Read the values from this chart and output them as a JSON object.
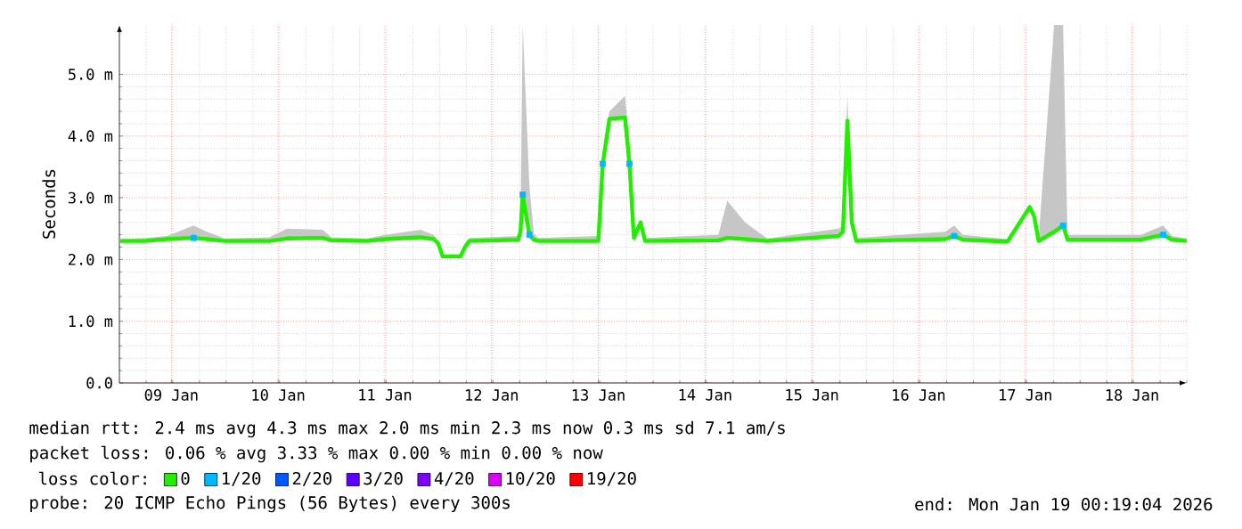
{
  "chart_data": {
    "type": "line",
    "ylabel": "Seconds",
    "legend_title": "loss color:",
    "legend": "bottom",
    "grid": true,
    "xlim": [
      "2026-01-09T00:19",
      "2026-01-19T00:19"
    ],
    "xticks": [
      {
        "value": "2026-01-09T12:00",
        "label": "09 Jan"
      },
      {
        "value": "2026-01-10T12:00",
        "label": "10 Jan"
      },
      {
        "value": "2026-01-11T12:00",
        "label": "11 Jan"
      },
      {
        "value": "2026-01-12T12:00",
        "label": "12 Jan"
      },
      {
        "value": "2026-01-13T12:00",
        "label": "13 Jan"
      },
      {
        "value": "2026-01-14T12:00",
        "label": "14 Jan"
      },
      {
        "value": "2026-01-15T12:00",
        "label": "15 Jan"
      },
      {
        "value": "2026-01-16T12:00",
        "label": "16 Jan"
      },
      {
        "value": "2026-01-17T12:00",
        "label": "17 Jan"
      },
      {
        "value": "2026-01-18T12:00",
        "label": "18 Jan"
      }
    ],
    "ylim": [
      0,
      5.8
    ],
    "yticks": [
      {
        "value": 0,
        "label": "0.0"
      },
      {
        "value": 1,
        "label": "1.0 m"
      },
      {
        "value": 2,
        "label": "2.0 m"
      },
      {
        "value": 3,
        "label": "3.0 m"
      },
      {
        "value": 4,
        "label": "4.0 m"
      },
      {
        "value": 5,
        "label": "5.0 m"
      }
    ],
    "x": [
      "2026-01-09T00:30",
      "2026-01-09T06:00",
      "2026-01-09T11:00",
      "2026-01-09T17:00",
      "2026-01-09T20:00",
      "2026-01-10T00:00",
      "2026-01-10T10:00",
      "2026-01-10T14:00",
      "2026-01-10T22:00",
      "2026-01-11T00:00",
      "2026-01-11T08:00",
      "2026-01-11T12:00",
      "2026-01-11T20:00",
      "2026-01-11T23:00",
      "2026-01-12T00:00",
      "2026-01-12T01:00",
      "2026-01-12T05:00",
      "2026-01-12T06:00",
      "2026-01-12T07:00",
      "2026-01-12T18:00",
      "2026-01-12T18:30",
      "2026-01-12T19:00",
      "2026-01-12T20:30",
      "2026-01-12T21:30",
      "2026-01-12T22:30",
      "2026-01-13T12:00",
      "2026-01-13T13:00",
      "2026-01-13T14:30",
      "2026-01-13T18:00",
      "2026-01-13T19:00",
      "2026-01-13T20:00",
      "2026-01-13T21:30",
      "2026-01-13T22:30",
      "2026-01-14T15:00",
      "2026-01-14T17:00",
      "2026-01-14T21:00",
      "2026-01-15T02:00",
      "2026-01-15T18:00",
      "2026-01-15T19:00",
      "2026-01-15T20:00",
      "2026-01-15T21:00",
      "2026-01-15T22:00",
      "2026-01-16T18:00",
      "2026-01-16T20:00",
      "2026-01-16T22:00",
      "2026-01-17T08:00",
      "2026-01-17T13:00",
      "2026-01-17T14:00",
      "2026-01-17T15:00",
      "2026-01-17T18:30",
      "2026-01-17T20:30",
      "2026-01-17T21:30",
      "2026-01-18T14:00",
      "2026-01-18T19:00",
      "2026-01-18T21:00",
      "2026-01-19T00:19"
    ],
    "series": [
      {
        "name": "0",
        "color": "#22ee00",
        "values": [
          2.3,
          2.3,
          2.33,
          2.35,
          2.33,
          2.3,
          2.3,
          2.34,
          2.35,
          2.31,
          2.3,
          2.33,
          2.36,
          2.33,
          2.26,
          2.05,
          2.05,
          2.2,
          2.3,
          2.32,
          2.45,
          3.05,
          2.4,
          2.32,
          2.3,
          2.3,
          3.55,
          4.28,
          4.3,
          3.55,
          2.35,
          2.6,
          2.3,
          2.31,
          2.35,
          2.33,
          2.3,
          2.38,
          2.45,
          4.25,
          2.6,
          2.3,
          2.33,
          2.38,
          2.32,
          2.29,
          2.85,
          2.7,
          2.3,
          2.45,
          2.55,
          2.32,
          2.32,
          2.4,
          2.32,
          2.3
        ],
        "lower": [
          2.28,
          2.28,
          2.31,
          2.33,
          2.31,
          2.28,
          2.28,
          2.32,
          2.33,
          2.29,
          2.28,
          2.31,
          2.34,
          2.31,
          2.24,
          2.03,
          2.03,
          2.18,
          2.28,
          2.3,
          2.43,
          2.95,
          2.36,
          2.3,
          2.28,
          2.28,
          3.5,
          4.25,
          4.27,
          3.5,
          2.33,
          2.58,
          2.28,
          2.29,
          2.33,
          2.31,
          2.28,
          2.36,
          2.43,
          4.2,
          2.58,
          2.28,
          2.31,
          2.36,
          2.3,
          2.27,
          2.8,
          2.65,
          2.28,
          2.4,
          2.5,
          2.3,
          2.3,
          2.38,
          2.3,
          2.28
        ],
        "upper": [
          2.33,
          2.35,
          2.38,
          2.55,
          2.45,
          2.34,
          2.36,
          2.5,
          2.48,
          2.36,
          2.34,
          2.4,
          2.48,
          2.4,
          2.3,
          2.08,
          2.08,
          2.25,
          2.35,
          2.38,
          2.55,
          5.8,
          3.2,
          2.42,
          2.35,
          2.38,
          3.75,
          4.4,
          4.65,
          3.9,
          2.45,
          2.65,
          2.35,
          2.4,
          2.95,
          2.6,
          2.34,
          2.5,
          2.55,
          4.65,
          2.65,
          2.35,
          2.45,
          2.55,
          2.4,
          2.33,
          2.9,
          2.75,
          2.35,
          5.8,
          5.8,
          2.4,
          2.4,
          2.55,
          2.38,
          2.34
        ]
      },
      {
        "name": "1/20",
        "color": "#00b8ff",
        "type": "scatter",
        "x": [
          "2026-01-09T17:00",
          "2026-01-12T19:00",
          "2026-01-12T20:30",
          "2026-01-13T13:00",
          "2026-01-13T19:00",
          "2026-01-16T20:00",
          "2026-01-17T20:30",
          "2026-01-18T19:00"
        ],
        "values": [
          2.35,
          3.05,
          2.4,
          3.55,
          3.55,
          2.38,
          2.55,
          2.4
        ]
      },
      {
        "name": "2/20",
        "color": "#0059ff",
        "type": "scatter",
        "values": [
          null,
          null,
          null,
          null,
          null,
          null,
          null,
          null,
          null,
          null,
          null,
          null,
          null,
          null,
          null,
          null,
          null,
          null,
          null,
          null,
          null,
          null,
          null,
          null,
          null,
          null,
          null,
          null,
          null,
          null,
          null,
          null,
          null,
          null,
          null,
          null,
          null,
          null,
          null,
          null,
          null,
          null,
          null,
          null,
          null,
          null,
          null,
          null,
          null,
          null,
          null,
          null,
          null,
          null,
          null,
          null
        ]
      },
      {
        "name": "3/20",
        "color": "#5e00ff",
        "type": "scatter",
        "values": [
          null,
          null,
          null,
          null,
          null,
          null,
          null,
          null,
          null,
          null,
          null,
          null,
          null,
          null,
          null,
          null,
          null,
          null,
          null,
          null,
          null,
          null,
          null,
          null,
          null,
          null,
          null,
          null,
          null,
          null,
          null,
          null,
          null,
          null,
          null,
          null,
          null,
          null,
          null,
          null,
          null,
          null,
          null,
          null,
          null,
          null,
          null,
          null,
          null,
          null,
          null,
          null,
          null,
          null,
          null,
          null
        ]
      },
      {
        "name": "4/20",
        "color": "#7e00ff",
        "type": "scatter",
        "values": [
          null,
          null,
          null,
          null,
          null,
          null,
          null,
          null,
          null,
          null,
          null,
          null,
          null,
          null,
          null,
          null,
          null,
          null,
          null,
          null,
          null,
          null,
          null,
          null,
          null,
          null,
          null,
          null,
          null,
          null,
          null,
          null,
          null,
          null,
          null,
          null,
          null,
          null,
          null,
          null,
          null,
          null,
          null,
          null,
          null,
          null,
          null,
          null,
          null,
          null,
          null,
          null,
          null,
          null,
          null,
          null
        ]
      },
      {
        "name": "10/20",
        "color": "#dd00ff",
        "type": "scatter",
        "values": [
          null,
          null,
          null,
          null,
          null,
          null,
          null,
          null,
          null,
          null,
          null,
          null,
          null,
          null,
          null,
          null,
          null,
          null,
          null,
          null,
          null,
          null,
          null,
          null,
          null,
          null,
          null,
          null,
          null,
          null,
          null,
          null,
          null,
          null,
          null,
          null,
          null,
          null,
          null,
          null,
          null,
          null,
          null,
          null,
          null,
          null,
          null,
          null,
          null,
          null,
          null,
          null,
          null,
          null,
          null,
          null
        ]
      },
      {
        "name": "19/20",
        "color": "#ff0000",
        "type": "scatter",
        "values": [
          null,
          null,
          null,
          null,
          null,
          null,
          null,
          null,
          null,
          null,
          null,
          null,
          null,
          null,
          null,
          null,
          null,
          null,
          null,
          null,
          null,
          null,
          null,
          null,
          null,
          null,
          null,
          null,
          null,
          null,
          null,
          null,
          null,
          null,
          null,
          null,
          null,
          null,
          null,
          null,
          null,
          null,
          null,
          null,
          null,
          null,
          null,
          null,
          null,
          null,
          null,
          null,
          null,
          null,
          null,
          null
        ]
      }
    ],
    "annotations": [
      "median rtt:  2.4 ms avg  4.3 ms max  2.0 ms min  2.3 ms now  0.3 ms sd  7.1   am/s",
      "packet loss: 0.06 % avg  3.33 % max  0.00 % min  0.00 % now",
      "probe:       20 ICMP Echo Pings (56 Bytes) every 300s",
      "end: Mon Jan 19 00:19:04 2026"
    ]
  }
}
